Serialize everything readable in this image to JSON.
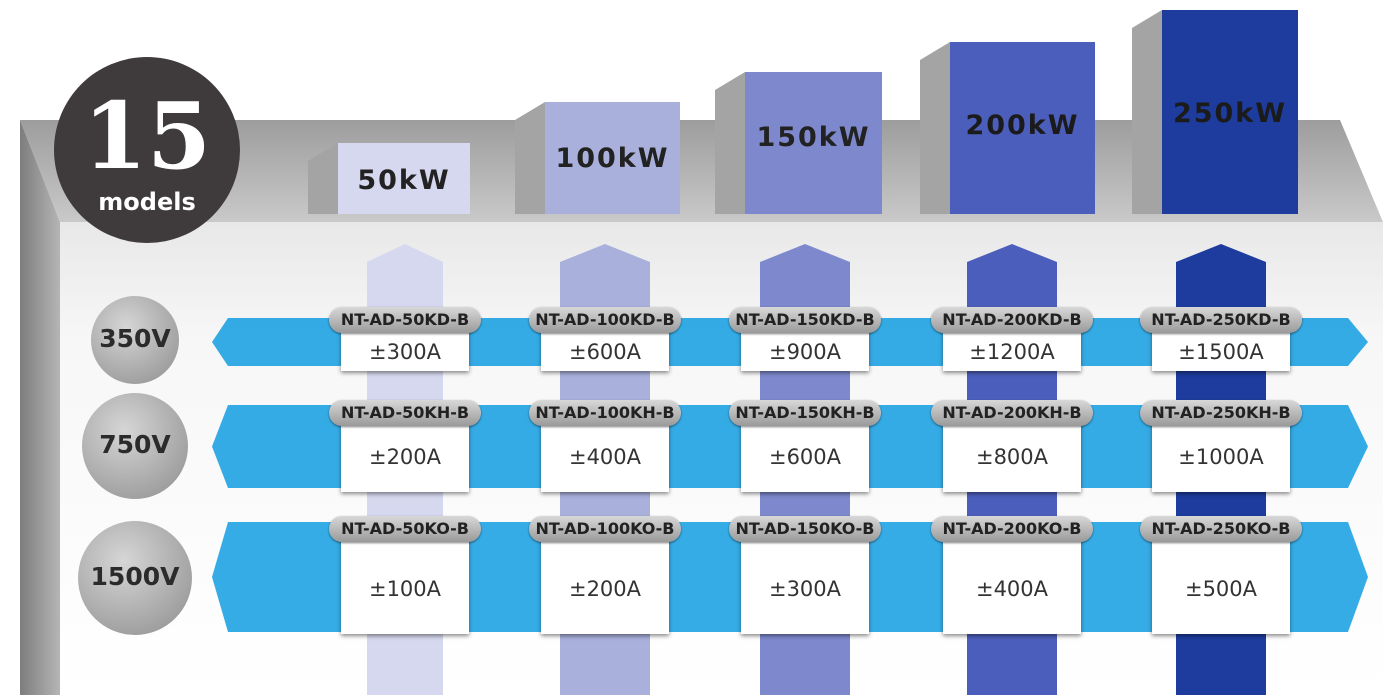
{
  "badge": {
    "count": "15",
    "label": "models"
  },
  "colors": {
    "blue_band": "#0a9ae0",
    "columns": [
      "#d5d8ee",
      "#a9b0dc",
      "#7d89cc",
      "#4c5ebb",
      "#1d3c9e"
    ]
  },
  "columns": [
    {
      "power": "50kW"
    },
    {
      "power": "100kW"
    },
    {
      "power": "150kW"
    },
    {
      "power": "200kW"
    },
    {
      "power": "250kW"
    }
  ],
  "rows": [
    {
      "voltage": "350V",
      "cells": [
        {
          "model": "NT-AD-50KD-B",
          "current": "±300A"
        },
        {
          "model": "NT-AD-100KD-B",
          "current": "±600A"
        },
        {
          "model": "NT-AD-150KD-B",
          "current": "±900A"
        },
        {
          "model": "NT-AD-200KD-B",
          "current": "±1200A"
        },
        {
          "model": "NT-AD-250KD-B",
          "current": "±1500A"
        }
      ]
    },
    {
      "voltage": "750V",
      "cells": [
        {
          "model": "NT-AD-50KH-B",
          "current": "±200A"
        },
        {
          "model": "NT-AD-100KH-B",
          "current": "±400A"
        },
        {
          "model": "NT-AD-150KH-B",
          "current": "±600A"
        },
        {
          "model": "NT-AD-200KH-B",
          "current": "±800A"
        },
        {
          "model": "NT-AD-250KH-B",
          "current": "±1000A"
        }
      ]
    },
    {
      "voltage": "1500V",
      "cells": [
        {
          "model": "NT-AD-50KO-B",
          "current": "±100A"
        },
        {
          "model": "NT-AD-100KO-B",
          "current": "±200A"
        },
        {
          "model": "NT-AD-150KO-B",
          "current": "±300A"
        },
        {
          "model": "NT-AD-200KO-B",
          "current": "±400A"
        },
        {
          "model": "NT-AD-250KO-B",
          "current": "±500A"
        }
      ]
    }
  ]
}
